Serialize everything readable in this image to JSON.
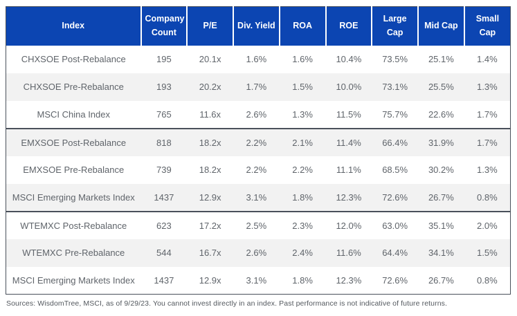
{
  "chart_data": {
    "type": "table",
    "columns": [
      "Index",
      "Company Count",
      "P/E",
      "Div. Yield",
      "ROA",
      "ROE",
      "Large Cap",
      "Mid Cap",
      "Small Cap"
    ],
    "groups": [
      {
        "rows": [
          [
            "CHXSOE Post-Rebalance",
            "195",
            "20.1x",
            "1.6%",
            "1.6%",
            "10.4%",
            "73.5%",
            "25.1%",
            "1.4%"
          ],
          [
            "CHXSOE Pre-Rebalance",
            "193",
            "20.2x",
            "1.7%",
            "1.5%",
            "10.0%",
            "73.1%",
            "25.5%",
            "1.3%"
          ],
          [
            "MSCI China Index",
            "765",
            "11.6x",
            "2.6%",
            "1.3%",
            "11.5%",
            "75.7%",
            "22.6%",
            "1.7%"
          ]
        ]
      },
      {
        "rows": [
          [
            "EMXSOE Post-Rebalance",
            "818",
            "18.2x",
            "2.2%",
            "2.1%",
            "11.4%",
            "66.4%",
            "31.9%",
            "1.7%"
          ],
          [
            "EMXSOE Pre-Rebalance",
            "739",
            "18.2x",
            "2.2%",
            "2.2%",
            "11.1%",
            "68.5%",
            "30.2%",
            "1.3%"
          ],
          [
            "MSCI Emerging Markets Index",
            "1437",
            "12.9x",
            "3.1%",
            "1.8%",
            "12.3%",
            "72.6%",
            "26.7%",
            "0.8%"
          ]
        ]
      },
      {
        "rows": [
          [
            "WTEMXC Post-Rebalance",
            "623",
            "17.2x",
            "2.5%",
            "2.3%",
            "12.0%",
            "63.0%",
            "35.1%",
            "2.0%"
          ],
          [
            "WTEMXC Pre-Rebalance",
            "544",
            "16.7x",
            "2.6%",
            "2.4%",
            "11.6%",
            "64.4%",
            "34.1%",
            "1.5%"
          ],
          [
            "MSCI Emerging Markets Index",
            "1437",
            "12.9x",
            "3.1%",
            "1.8%",
            "12.3%",
            "72.6%",
            "26.7%",
            "0.8%"
          ]
        ]
      }
    ]
  },
  "footer": {
    "text": "Sources: WisdomTree, MSCI, as of 9/29/23. You cannot invest directly in an index. Past performance is not indicative of future returns."
  },
  "colors": {
    "header_bg": "#0c45b2",
    "header_text": "#ffffff",
    "stripe_bg": "#f2f2f2",
    "border": "#49505a",
    "body_text": "#5f646a",
    "footnote_text": "#53585e"
  }
}
